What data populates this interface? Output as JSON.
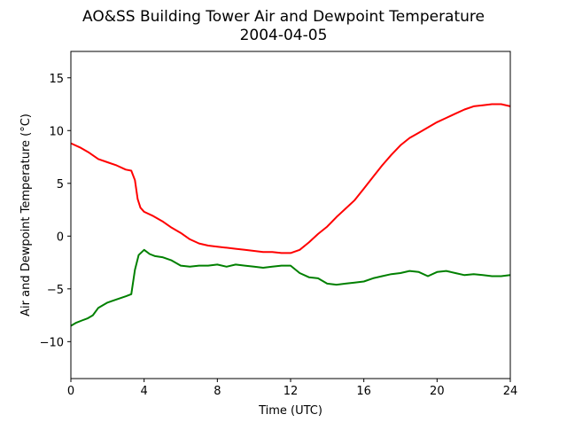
{
  "chart_data": {
    "type": "line",
    "title": "AO&SS Building Tower Air and Dewpoint Temperature",
    "subtitle": "2004-04-05",
    "xlabel": "Time (UTC)",
    "ylabel": "Air and Dewpoint Temperature (°C)",
    "xlim": [
      0,
      24
    ],
    "ylim": [
      -13.5,
      17.5
    ],
    "xticks": [
      0,
      4,
      8,
      12,
      16,
      20,
      24
    ],
    "yticks": [
      -10,
      -5,
      0,
      5,
      10,
      15
    ],
    "grid": false,
    "legend": "none",
    "series": [
      {
        "color": "#ff0000",
        "x": [
          0,
          0.5,
          1,
          1.5,
          2,
          2.5,
          3,
          3.3,
          3.5,
          3.65,
          3.8,
          4,
          4.5,
          5,
          5.5,
          6,
          6.5,
          7,
          7.5,
          8,
          8.5,
          9,
          9.5,
          10,
          10.5,
          11,
          11.5,
          12,
          12.5,
          13,
          13.5,
          14,
          14.5,
          15,
          15.5,
          16,
          16.5,
          17,
          17.5,
          18,
          18.5,
          19,
          19.5,
          20,
          20.5,
          21,
          21.5,
          22,
          22.5,
          23,
          23.5,
          24
        ],
        "y": [
          8.8,
          8.4,
          7.9,
          7.3,
          7.0,
          6.7,
          6.3,
          6.2,
          5.3,
          3.5,
          2.7,
          2.3,
          1.9,
          1.4,
          0.8,
          0.3,
          -0.3,
          -0.7,
          -0.9,
          -1.0,
          -1.1,
          -1.2,
          -1.3,
          -1.4,
          -1.5,
          -1.5,
          -1.6,
          -1.6,
          -1.3,
          -0.6,
          0.2,
          0.9,
          1.8,
          2.6,
          3.4,
          4.5,
          5.6,
          6.7,
          7.7,
          8.6,
          9.3,
          9.8,
          10.3,
          10.8,
          11.2,
          11.6,
          12.0,
          12.3,
          12.4,
          12.5,
          12.5,
          12.3
        ]
      },
      {
        "color": "#008000",
        "x": [
          0,
          0.3,
          0.6,
          0.9,
          1.2,
          1.5,
          2,
          2.5,
          3,
          3.3,
          3.5,
          3.7,
          4,
          4.3,
          4.6,
          5,
          5.5,
          6,
          6.5,
          7,
          7.5,
          8,
          8.5,
          9,
          9.5,
          10,
          10.5,
          11,
          11.5,
          12,
          12.5,
          13,
          13.5,
          14,
          14.5,
          15,
          15.5,
          16,
          16.5,
          17,
          17.5,
          18,
          18.5,
          19,
          19.5,
          20,
          20.5,
          21,
          21.5,
          22,
          22.5,
          23,
          23.5,
          24
        ],
        "y": [
          -8.5,
          -8.2,
          -8.0,
          -7.8,
          -7.5,
          -6.8,
          -6.3,
          -6.0,
          -5.7,
          -5.5,
          -3.2,
          -1.8,
          -1.3,
          -1.7,
          -1.9,
          -2.0,
          -2.3,
          -2.8,
          -2.9,
          -2.8,
          -2.8,
          -2.7,
          -2.9,
          -2.7,
          -2.8,
          -2.9,
          -3.0,
          -2.9,
          -2.8,
          -2.8,
          -3.5,
          -3.9,
          -4.0,
          -4.5,
          -4.6,
          -4.5,
          -4.4,
          -4.3,
          -4.0,
          -3.8,
          -3.6,
          -3.5,
          -3.3,
          -3.4,
          -3.8,
          -3.4,
          -3.3,
          -3.5,
          -3.7,
          -3.6,
          -3.7,
          -3.8,
          -3.8,
          -3.7
        ]
      }
    ]
  }
}
